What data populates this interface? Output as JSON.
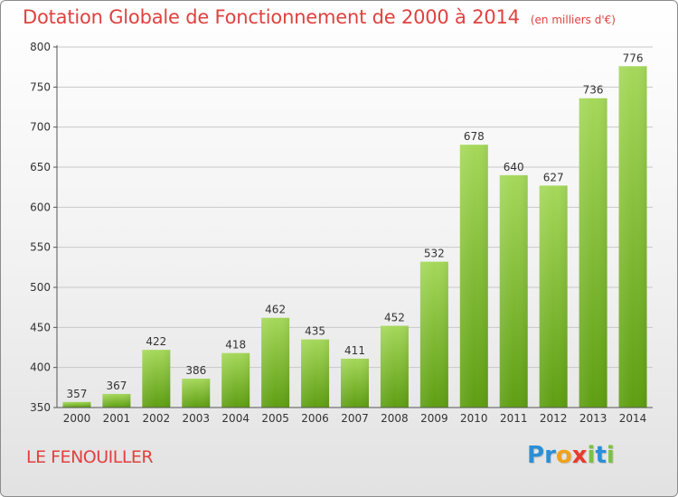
{
  "title": "Dotation Globale de Fonctionnement de 2000 à 2014",
  "subtitle": "(en milliers d'€)",
  "commune": "LE FENOUILLER",
  "logo": {
    "letters": [
      "P",
      "r",
      "o",
      "x",
      "i",
      "t",
      "i"
    ],
    "colors": [
      "#2a8fd6",
      "#2a8fd6",
      "#f0a21b",
      "#e83b2c",
      "#7cc143",
      "#2a8fd6",
      "#7cc143"
    ]
  },
  "colors": {
    "bar_light": "#a5d85a",
    "bar_dark": "#5e9e12",
    "grid": "#c8c8c8",
    "text_red": "#e0413f"
  },
  "chart_data": {
    "type": "bar",
    "categories": [
      "2000",
      "2001",
      "2002",
      "2003",
      "2004",
      "2005",
      "2006",
      "2007",
      "2008",
      "2009",
      "2010",
      "2011",
      "2012",
      "2013",
      "2014"
    ],
    "values": [
      357,
      367,
      422,
      386,
      418,
      462,
      435,
      411,
      452,
      532,
      678,
      640,
      627,
      736,
      776
    ],
    "yticks": [
      350,
      400,
      450,
      500,
      550,
      600,
      650,
      700,
      750,
      800
    ],
    "ylim": [
      350,
      800
    ],
    "grid": true,
    "xlabel": "",
    "ylabel": ""
  }
}
